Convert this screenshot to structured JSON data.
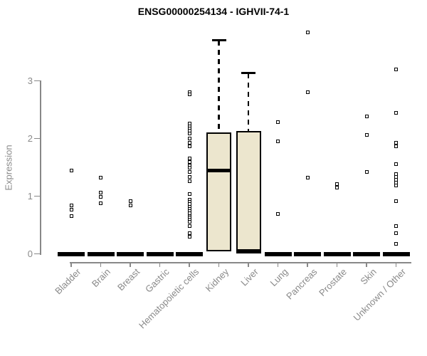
{
  "chart_data": {
    "type": "boxplot",
    "title": "ENSG00000254134 - IGHVII-74-1",
    "ylabel": "Expression",
    "xlabel": "",
    "yticks": [
      0,
      1,
      2,
      3
    ],
    "ylim": [
      -0.2,
      3.95
    ],
    "grid": false,
    "legend": "none",
    "categories": [
      "Bladder",
      "Brain",
      "Breast",
      "Gastric",
      "Hematopoietic cells",
      "Kidney",
      "Liver",
      "Lung",
      "Pancreas",
      "Prostate",
      "Skin",
      "Unknown / Other"
    ],
    "groups": [
      {
        "name": "Bladder",
        "median": 0,
        "q1": 0,
        "q3": 0,
        "whisker_low": 0,
        "whisker_high": 0,
        "outliers": [
          1.45,
          0.84,
          0.76,
          0.66
        ]
      },
      {
        "name": "Brain",
        "median": 0,
        "q1": 0,
        "q3": 0,
        "whisker_low": 0,
        "whisker_high": 0,
        "outliers": [
          1.32,
          1.06,
          0.99,
          0.88
        ]
      },
      {
        "name": "Breast",
        "median": 0,
        "q1": 0,
        "q3": 0,
        "whisker_low": 0,
        "whisker_high": 0,
        "outliers": [
          0.91,
          0.84
        ]
      },
      {
        "name": "Gastric",
        "median": 0,
        "q1": 0,
        "q3": 0,
        "whisker_low": 0,
        "whisker_high": 0,
        "outliers": []
      },
      {
        "name": "Hematopoietic cells",
        "median": 0,
        "q1": 0,
        "q3": 0,
        "whisker_low": 0,
        "whisker_high": 0,
        "outliers": [
          2.8,
          2.76,
          2.26,
          2.21,
          2.17,
          2.13,
          2.09,
          2.0,
          1.93,
          1.86,
          1.65,
          1.59,
          1.53,
          1.49,
          1.42,
          1.33,
          1.26,
          1.04,
          0.94,
          0.9,
          0.86,
          0.82,
          0.78,
          0.74,
          0.7,
          0.66,
          0.63,
          0.59,
          0.55,
          0.48,
          0.36,
          0.3
        ]
      },
      {
        "name": "Kidney",
        "median": 1.45,
        "q1": 0.04,
        "q3": 2.11,
        "whisker_low": 0.04,
        "whisker_high": 3.7,
        "outliers": []
      },
      {
        "name": "Liver",
        "median": 0.05,
        "q1": 0,
        "q3": 2.13,
        "whisker_low": 0,
        "whisker_high": 3.13,
        "outliers": []
      },
      {
        "name": "Lung",
        "median": 0,
        "q1": 0,
        "q3": 0,
        "whisker_low": 0,
        "whisker_high": 0,
        "outliers": [
          2.28,
          1.95,
          0.69
        ]
      },
      {
        "name": "Pancreas",
        "median": 0,
        "q1": 0,
        "q3": 0,
        "whisker_low": 0,
        "whisker_high": 0,
        "outliers": [
          3.84,
          2.8,
          1.32
        ]
      },
      {
        "name": "Prostate",
        "median": 0,
        "q1": 0,
        "q3": 0,
        "whisker_low": 0,
        "whisker_high": 0,
        "outliers": [
          1.21,
          1.15
        ]
      },
      {
        "name": "Skin",
        "median": 0,
        "q1": 0,
        "q3": 0,
        "whisker_low": 0,
        "whisker_high": 0,
        "outliers": [
          2.38,
          2.06,
          1.42
        ]
      },
      {
        "name": "Unknown / Other",
        "median": 0,
        "q1": 0,
        "q3": 0,
        "whisker_low": 0,
        "whisker_high": 0,
        "outliers": [
          3.2,
          2.44,
          1.93,
          1.87,
          1.55,
          1.38,
          1.33,
          1.28,
          1.23,
          1.18,
          0.91,
          0.48,
          0.36,
          0.17
        ]
      }
    ],
    "colors": {
      "box_fill": "#ECE6CE",
      "box_border": "#000000",
      "axis": "#888888",
      "tick_text": "#8a8a8a",
      "title_text": "#000000",
      "marker": "#000000"
    }
  }
}
